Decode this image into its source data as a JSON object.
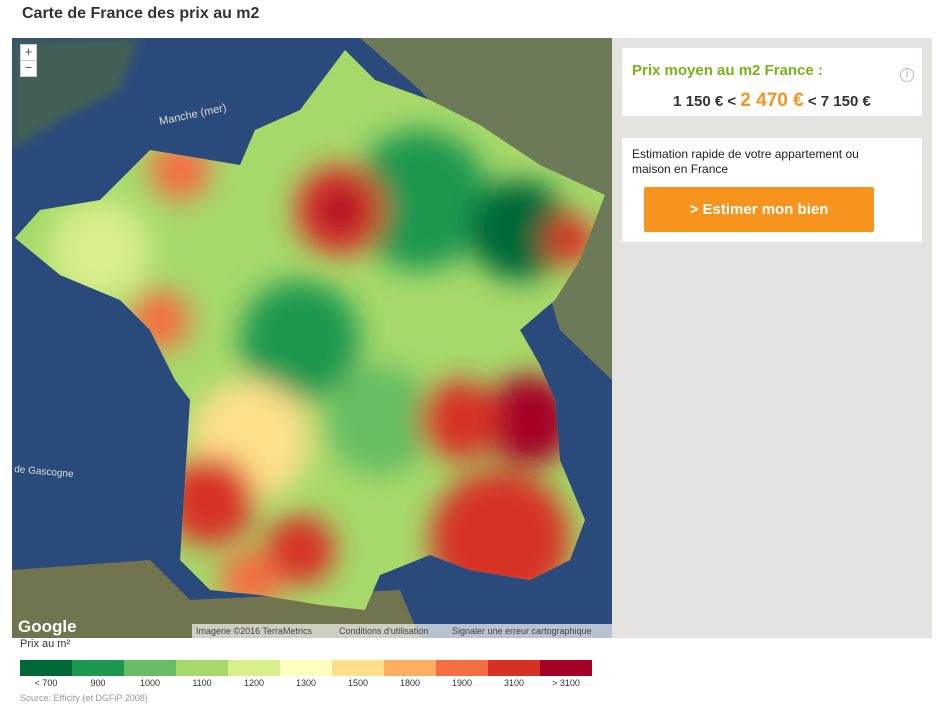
{
  "header": {
    "title": "Carte de France des prix au m2"
  },
  "map": {
    "zoom_in": "+",
    "zoom_out": "−",
    "labels": [
      "Manche (mer)",
      "de Gascogne"
    ],
    "attribution": {
      "logo": "Google",
      "imagery": "Imagerie ©2016 TerraMetrics",
      "terms": "Conditions d'utilisation",
      "report": "Signaler une erreur cartographique"
    }
  },
  "summary": {
    "title": "Prix moyen au m2 France :",
    "info": "i",
    "min": "1 150 € <",
    "average": "2 470 €",
    "max": "< 7 150 €"
  },
  "estimate": {
    "text": "Estimation rapide de votre appartement ou maison en France",
    "button": "> Estimer mon bien"
  },
  "legend": {
    "title": "Prix au m²",
    "items": [
      {
        "label": "< 700",
        "color": "#006837"
      },
      {
        "label": "900",
        "color": "#1a9850"
      },
      {
        "label": "1000",
        "color": "#66bd63"
      },
      {
        "label": "1100",
        "color": "#a6d96a"
      },
      {
        "label": "1200",
        "color": "#d9ef8b"
      },
      {
        "label": "1300",
        "color": "#ffffbf"
      },
      {
        "label": "1500",
        "color": "#fee08b"
      },
      {
        "label": "1800",
        "color": "#fdae61"
      },
      {
        "label": "1900",
        "color": "#f46d43"
      },
      {
        "label": "3100",
        "color": "#d73027"
      },
      {
        "label": "> 3100",
        "color": "#a50026"
      }
    ]
  },
  "source": "Source: Efficity (et DGFiP 2008)"
}
